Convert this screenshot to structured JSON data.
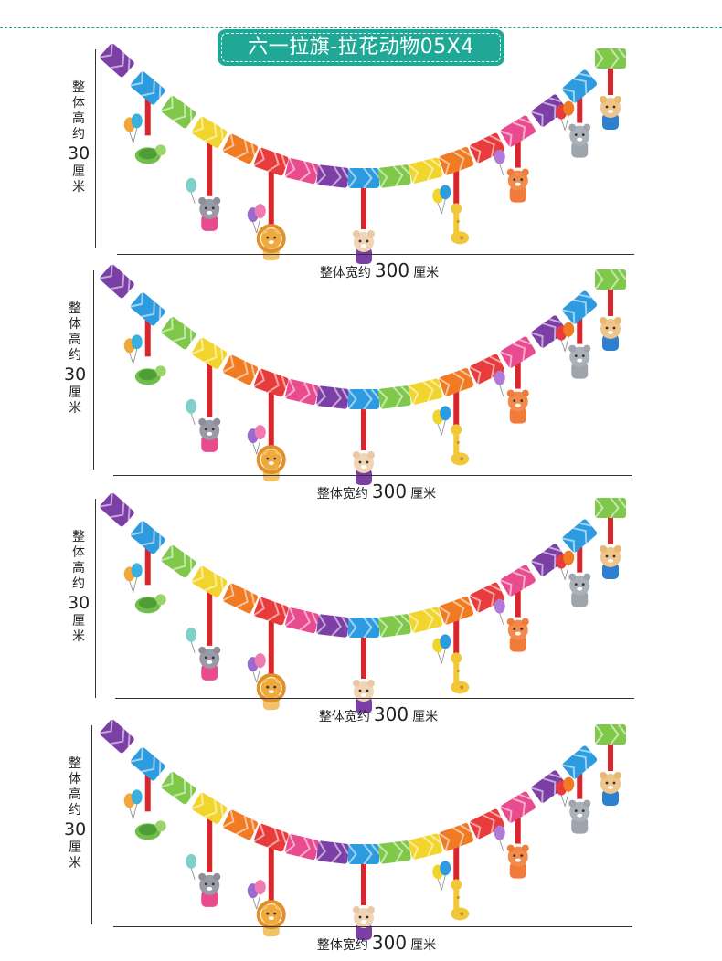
{
  "title": "六一拉旗-拉花动物05X4",
  "dimension": {
    "height_chars": [
      "整",
      "体",
      "高",
      "约"
    ],
    "height_value": "30",
    "height_unit_chars": [
      "厘",
      "米"
    ],
    "width_prefix": "整体宽约",
    "width_value": "300",
    "width_unit": "厘米"
  },
  "panels": [
    {
      "id": 1
    },
    {
      "id": 2
    },
    {
      "id": 3
    },
    {
      "id": 4
    }
  ],
  "garland": {
    "colors": [
      "#7c3fa6",
      "#2d9be0",
      "#7fc84a",
      "#f2d52c",
      "#f07b22",
      "#e83b3b",
      "#e94b8f",
      "#7c3fa6",
      "#2d9be0",
      "#7fc84a",
      "#f2d52c",
      "#f07b22",
      "#e83b3b",
      "#e94b8f",
      "#7c3fa6",
      "#2d9be0",
      "#7fc84a"
    ],
    "ribbon_color": "#d9262c",
    "animals": [
      "turtle-icon",
      "raccoon-icon",
      "lion-icon",
      "cat-icon",
      "giraffe-icon",
      "fox-icon",
      "hippo-icon",
      "bear-icon"
    ]
  },
  "colors": {
    "accent": "#20a897",
    "line": "#333333"
  }
}
